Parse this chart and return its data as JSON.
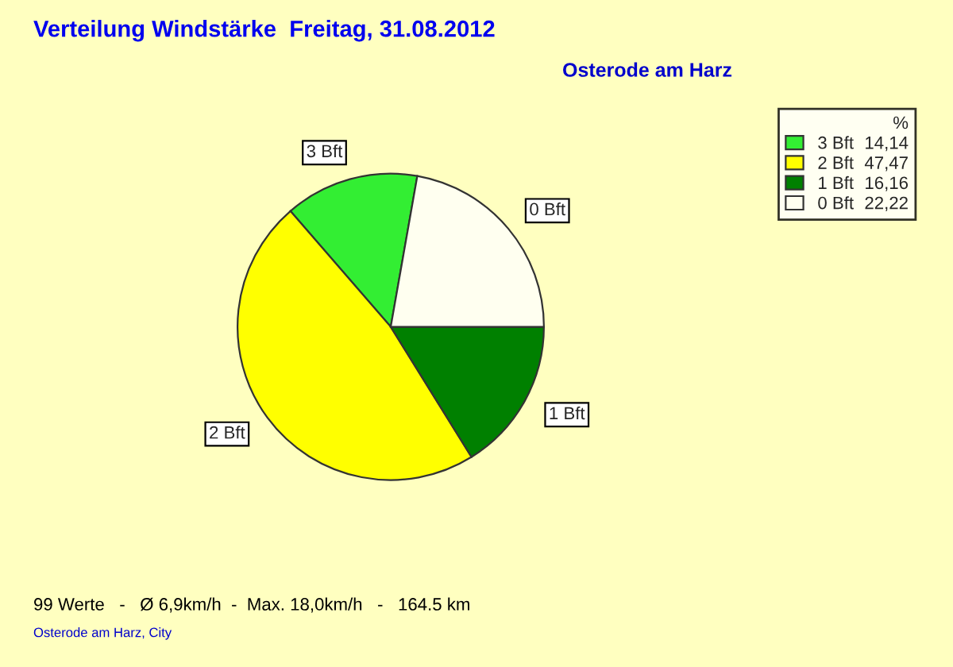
{
  "chart_data": {
    "type": "pie",
    "title": "Verteilung Windstärke  Freitag, 31.08.2012",
    "subtitle": "Osterode am Harz",
    "categories": [
      "3 Bft",
      "2 Bft",
      "1 Bft",
      "0 Bft"
    ],
    "values": [
      14.14,
      47.47,
      16.16,
      22.22
    ],
    "value_labels": [
      "14,14",
      "47,47",
      "16,16",
      "22,22"
    ],
    "colors": [
      "#33ee33",
      "#ffff00",
      "#008000",
      "#fffff0"
    ],
    "legend_title": "%",
    "legend": "top right",
    "annotations": [
      "99 Werte   -   Ø 6,9km/h  -  Max. 18,0km/h   -   164.5 km",
      "Osterode am Harz, City"
    ]
  }
}
